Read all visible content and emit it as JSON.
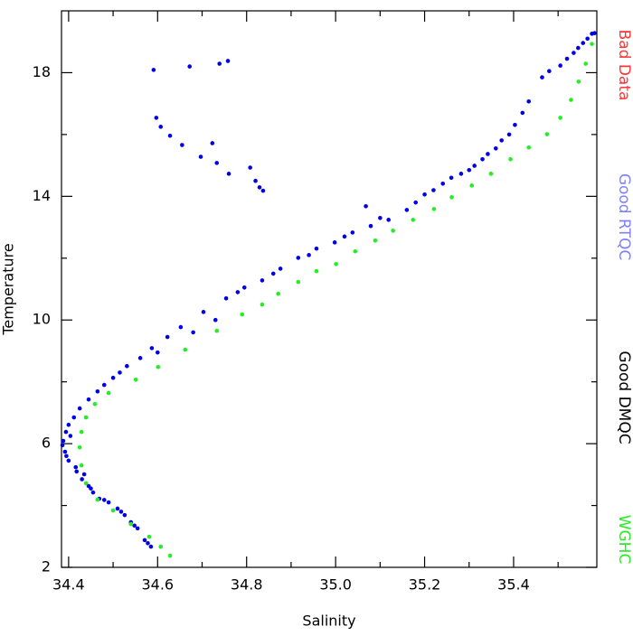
{
  "chart_data": {
    "type": "scatter",
    "x_label": "Salinity",
    "y_label": "Temperature",
    "xlim": [
      34.384,
      35.587
    ],
    "ylim": [
      2,
      20
    ],
    "xticks": [
      34.4,
      34.6,
      34.8,
      {
        "value": 35.0,
        "label": "35.0"
      },
      35.2,
      35.4
    ],
    "xminorticks": [
      34.5,
      34.7,
      34.9,
      35.1,
      35.3,
      35.5
    ],
    "yticks": [
      2,
      6,
      10,
      14,
      18
    ],
    "yminorticks": [
      4,
      8,
      12,
      16
    ],
    "series": [
      {
        "name": "Bad Data",
        "color": "#ff3333",
        "label_color": "#ff3333",
        "x": [],
        "y": []
      },
      {
        "name": "Good RTQC",
        "color": "#8080ff",
        "label_color": "#8080ff",
        "x": [],
        "y": []
      },
      {
        "name": "Good DMQC",
        "color": "#0000e6",
        "label_color": "#000000",
        "x": [
          34.585,
          34.571,
          34.555,
          34.54,
          34.526,
          34.51,
          34.49,
          34.469,
          34.455,
          34.445,
          34.435,
          34.416,
          34.4,
          34.392,
          34.388,
          34.394,
          34.4,
          34.412,
          34.425,
          34.445,
          34.465,
          34.5,
          34.531,
          34.561,
          34.587,
          34.622,
          34.652,
          34.703,
          34.754,
          34.795,
          34.835,
          34.876,
          34.916,
          34.957,
          34.998,
          35.038,
          35.079,
          35.119,
          35.16,
          35.2,
          35.241,
          35.282,
          35.312,
          35.342,
          35.373,
          35.403,
          35.434,
          35.464,
          35.505,
          35.535,
          35.556,
          35.576,
          34.591,
          34.672,
          34.739,
          34.758,
          34.597,
          34.607,
          34.628,
          34.655,
          34.697,
          34.723,
          34.733,
          34.76,
          34.808,
          34.82,
          34.829,
          34.837,
          35.068,
          34.578,
          34.548,
          34.518,
          34.48,
          34.45,
          34.43,
          34.395,
          34.386,
          34.404,
          34.418,
          34.48,
          34.515,
          34.6,
          34.68,
          34.73,
          34.78,
          34.86,
          34.94,
          35.02,
          35.1,
          35.18,
          35.22,
          35.26,
          35.3,
          35.33,
          35.36,
          35.39,
          35.42,
          35.48,
          35.52,
          35.545,
          35.566,
          35.582
        ],
        "y": [
          2.67,
          2.88,
          3.26,
          3.46,
          3.69,
          3.9,
          4.1,
          4.22,
          4.42,
          4.63,
          5.01,
          5.24,
          5.45,
          5.74,
          6.09,
          6.38,
          6.61,
          6.85,
          7.14,
          7.43,
          7.69,
          8.13,
          8.51,
          8.77,
          9.09,
          9.45,
          9.77,
          10.26,
          10.7,
          11.05,
          11.28,
          11.66,
          12.01,
          12.31,
          12.51,
          12.83,
          13.04,
          13.24,
          13.56,
          14.06,
          14.41,
          14.73,
          14.99,
          15.37,
          15.81,
          16.31,
          17.07,
          17.85,
          18.23,
          18.64,
          18.96,
          19.26,
          18.09,
          18.2,
          18.29,
          18.38,
          16.54,
          16.25,
          15.96,
          15.66,
          15.28,
          15.72,
          15.08,
          14.73,
          14.93,
          14.5,
          14.29,
          14.18,
          13.68,
          2.78,
          3.35,
          3.8,
          4.18,
          4.55,
          4.85,
          5.6,
          5.95,
          6.25,
          5.1,
          7.9,
          8.3,
          8.95,
          9.6,
          10.0,
          10.9,
          11.5,
          12.1,
          12.7,
          13.3,
          13.8,
          14.2,
          14.6,
          14.85,
          15.2,
          15.55,
          16.0,
          16.7,
          18.05,
          18.45,
          18.8,
          19.1,
          19.28
        ]
      },
      {
        "name": "WGHC",
        "color": "#22ee22",
        "label_color": "#22ee22",
        "x": [
          34.628,
          34.607,
          34.581,
          34.54,
          34.5,
          34.465,
          34.439,
          34.429,
          34.425,
          34.429,
          34.439,
          34.459,
          34.49,
          34.551,
          34.601,
          34.662,
          34.733,
          34.79,
          34.835,
          34.871,
          34.916,
          34.957,
          35.001,
          35.044,
          35.089,
          35.129,
          35.174,
          35.221,
          35.261,
          35.306,
          35.349,
          35.393,
          35.434,
          35.475,
          35.505,
          35.529,
          35.546,
          35.562,
          35.576
        ],
        "y": [
          2.38,
          2.67,
          2.99,
          3.4,
          3.84,
          4.19,
          4.72,
          5.3,
          5.88,
          6.38,
          6.85,
          7.28,
          7.64,
          8.07,
          8.48,
          9.04,
          9.65,
          10.18,
          10.5,
          10.85,
          11.23,
          11.58,
          11.81,
          12.22,
          12.57,
          12.89,
          13.24,
          13.59,
          13.97,
          14.35,
          14.73,
          15.2,
          15.58,
          16.01,
          16.54,
          17.12,
          17.71,
          18.29,
          18.93
        ]
      }
    ]
  }
}
